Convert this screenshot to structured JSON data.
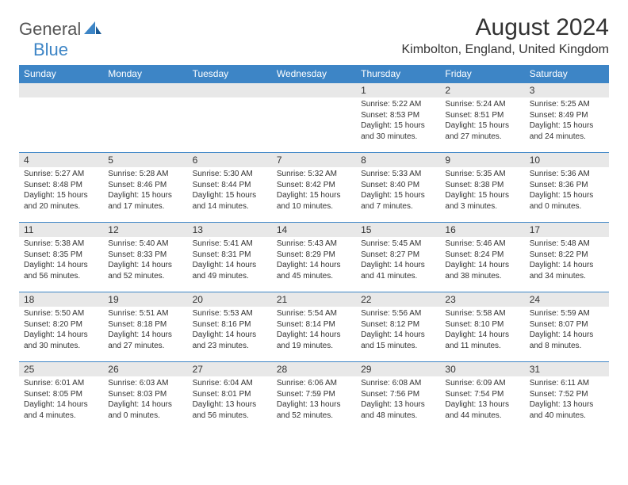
{
  "brand": {
    "part1": "General",
    "part2": "Blue"
  },
  "title": "August 2024",
  "location": "Kimbolton, England, United Kingdom",
  "colors": {
    "header_bg": "#3d85c6",
    "header_text": "#ffffff",
    "daynum_bg": "#e8e8e8",
    "row_divider": "#3d85c6",
    "body_text": "#333333"
  },
  "dayNames": [
    "Sunday",
    "Monday",
    "Tuesday",
    "Wednesday",
    "Thursday",
    "Friday",
    "Saturday"
  ],
  "weeks": [
    [
      null,
      null,
      null,
      null,
      {
        "n": "1",
        "sunrise": "5:22 AM",
        "sunset": "8:53 PM",
        "dl1": "Daylight: 15 hours",
        "dl2": "and 30 minutes."
      },
      {
        "n": "2",
        "sunrise": "5:24 AM",
        "sunset": "8:51 PM",
        "dl1": "Daylight: 15 hours",
        "dl2": "and 27 minutes."
      },
      {
        "n": "3",
        "sunrise": "5:25 AM",
        "sunset": "8:49 PM",
        "dl1": "Daylight: 15 hours",
        "dl2": "and 24 minutes."
      }
    ],
    [
      {
        "n": "4",
        "sunrise": "5:27 AM",
        "sunset": "8:48 PM",
        "dl1": "Daylight: 15 hours",
        "dl2": "and 20 minutes."
      },
      {
        "n": "5",
        "sunrise": "5:28 AM",
        "sunset": "8:46 PM",
        "dl1": "Daylight: 15 hours",
        "dl2": "and 17 minutes."
      },
      {
        "n": "6",
        "sunrise": "5:30 AM",
        "sunset": "8:44 PM",
        "dl1": "Daylight: 15 hours",
        "dl2": "and 14 minutes."
      },
      {
        "n": "7",
        "sunrise": "5:32 AM",
        "sunset": "8:42 PM",
        "dl1": "Daylight: 15 hours",
        "dl2": "and 10 minutes."
      },
      {
        "n": "8",
        "sunrise": "5:33 AM",
        "sunset": "8:40 PM",
        "dl1": "Daylight: 15 hours",
        "dl2": "and 7 minutes."
      },
      {
        "n": "9",
        "sunrise": "5:35 AM",
        "sunset": "8:38 PM",
        "dl1": "Daylight: 15 hours",
        "dl2": "and 3 minutes."
      },
      {
        "n": "10",
        "sunrise": "5:36 AM",
        "sunset": "8:36 PM",
        "dl1": "Daylight: 15 hours",
        "dl2": "and 0 minutes."
      }
    ],
    [
      {
        "n": "11",
        "sunrise": "5:38 AM",
        "sunset": "8:35 PM",
        "dl1": "Daylight: 14 hours",
        "dl2": "and 56 minutes."
      },
      {
        "n": "12",
        "sunrise": "5:40 AM",
        "sunset": "8:33 PM",
        "dl1": "Daylight: 14 hours",
        "dl2": "and 52 minutes."
      },
      {
        "n": "13",
        "sunrise": "5:41 AM",
        "sunset": "8:31 PM",
        "dl1": "Daylight: 14 hours",
        "dl2": "and 49 minutes."
      },
      {
        "n": "14",
        "sunrise": "5:43 AM",
        "sunset": "8:29 PM",
        "dl1": "Daylight: 14 hours",
        "dl2": "and 45 minutes."
      },
      {
        "n": "15",
        "sunrise": "5:45 AM",
        "sunset": "8:27 PM",
        "dl1": "Daylight: 14 hours",
        "dl2": "and 41 minutes."
      },
      {
        "n": "16",
        "sunrise": "5:46 AM",
        "sunset": "8:24 PM",
        "dl1": "Daylight: 14 hours",
        "dl2": "and 38 minutes."
      },
      {
        "n": "17",
        "sunrise": "5:48 AM",
        "sunset": "8:22 PM",
        "dl1": "Daylight: 14 hours",
        "dl2": "and 34 minutes."
      }
    ],
    [
      {
        "n": "18",
        "sunrise": "5:50 AM",
        "sunset": "8:20 PM",
        "dl1": "Daylight: 14 hours",
        "dl2": "and 30 minutes."
      },
      {
        "n": "19",
        "sunrise": "5:51 AM",
        "sunset": "8:18 PM",
        "dl1": "Daylight: 14 hours",
        "dl2": "and 27 minutes."
      },
      {
        "n": "20",
        "sunrise": "5:53 AM",
        "sunset": "8:16 PM",
        "dl1": "Daylight: 14 hours",
        "dl2": "and 23 minutes."
      },
      {
        "n": "21",
        "sunrise": "5:54 AM",
        "sunset": "8:14 PM",
        "dl1": "Daylight: 14 hours",
        "dl2": "and 19 minutes."
      },
      {
        "n": "22",
        "sunrise": "5:56 AM",
        "sunset": "8:12 PM",
        "dl1": "Daylight: 14 hours",
        "dl2": "and 15 minutes."
      },
      {
        "n": "23",
        "sunrise": "5:58 AM",
        "sunset": "8:10 PM",
        "dl1": "Daylight: 14 hours",
        "dl2": "and 11 minutes."
      },
      {
        "n": "24",
        "sunrise": "5:59 AM",
        "sunset": "8:07 PM",
        "dl1": "Daylight: 14 hours",
        "dl2": "and 8 minutes."
      }
    ],
    [
      {
        "n": "25",
        "sunrise": "6:01 AM",
        "sunset": "8:05 PM",
        "dl1": "Daylight: 14 hours",
        "dl2": "and 4 minutes."
      },
      {
        "n": "26",
        "sunrise": "6:03 AM",
        "sunset": "8:03 PM",
        "dl1": "Daylight: 14 hours",
        "dl2": "and 0 minutes."
      },
      {
        "n": "27",
        "sunrise": "6:04 AM",
        "sunset": "8:01 PM",
        "dl1": "Daylight: 13 hours",
        "dl2": "and 56 minutes."
      },
      {
        "n": "28",
        "sunrise": "6:06 AM",
        "sunset": "7:59 PM",
        "dl1": "Daylight: 13 hours",
        "dl2": "and 52 minutes."
      },
      {
        "n": "29",
        "sunrise": "6:08 AM",
        "sunset": "7:56 PM",
        "dl1": "Daylight: 13 hours",
        "dl2": "and 48 minutes."
      },
      {
        "n": "30",
        "sunrise": "6:09 AM",
        "sunset": "7:54 PM",
        "dl1": "Daylight: 13 hours",
        "dl2": "and 44 minutes."
      },
      {
        "n": "31",
        "sunrise": "6:11 AM",
        "sunset": "7:52 PM",
        "dl1": "Daylight: 13 hours",
        "dl2": "and 40 minutes."
      }
    ]
  ]
}
